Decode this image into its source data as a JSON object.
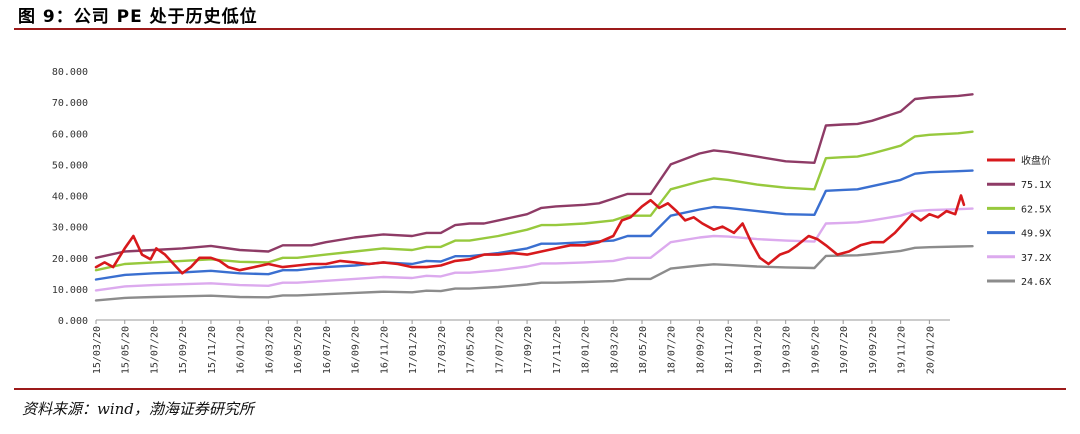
{
  "title": "图 9：公司 PE 处于历史低位",
  "source": "资料来源：wind，渤海证券研究所",
  "chart_data": {
    "type": "line",
    "ylim": [
      0,
      80
    ],
    "y_ticks": [
      "0.000",
      "10.000",
      "20.000",
      "30.000",
      "40.000",
      "50.000",
      "60.000",
      "70.000",
      "80.000"
    ],
    "x_ticks": [
      "15/03/20",
      "15/05/20",
      "15/07/20",
      "15/09/20",
      "15/11/20",
      "16/01/20",
      "16/03/20",
      "16/05/20",
      "16/07/20",
      "16/09/20",
      "16/11/20",
      "17/01/20",
      "17/03/20",
      "17/05/20",
      "17/07/20",
      "17/09/20",
      "17/11/20",
      "18/01/20",
      "18/03/20",
      "18/05/20",
      "18/07/20",
      "18/09/20",
      "18/11/20",
      "19/01/20",
      "19/03/20",
      "19/05/20",
      "19/07/20",
      "19/09/20",
      "19/11/20",
      "20/01/20"
    ],
    "grid": false,
    "legend_position": "right",
    "series": [
      {
        "name": "收盘价",
        "color": "#d7191c",
        "width": 2.6,
        "values": [
          [
            0,
            17
          ],
          [
            0.3,
            18.5
          ],
          [
            0.6,
            17
          ],
          [
            1.0,
            23
          ],
          [
            1.3,
            27
          ],
          [
            1.6,
            21
          ],
          [
            1.9,
            19.5
          ],
          [
            2.1,
            23
          ],
          [
            2.4,
            21
          ],
          [
            2.8,
            17
          ],
          [
            3.0,
            15
          ],
          [
            3.3,
            17
          ],
          [
            3.6,
            20
          ],
          [
            4.0,
            20
          ],
          [
            4.3,
            19
          ],
          [
            4.6,
            17
          ],
          [
            5.0,
            16
          ],
          [
            5.5,
            17
          ],
          [
            6.0,
            18
          ],
          [
            6.5,
            17
          ],
          [
            7.0,
            17.5
          ],
          [
            7.5,
            18
          ],
          [
            8.0,
            18
          ],
          [
            8.5,
            19
          ],
          [
            9.0,
            18.5
          ],
          [
            9.5,
            18
          ],
          [
            10.0,
            18.5
          ],
          [
            10.5,
            18
          ],
          [
            11.0,
            17
          ],
          [
            11.5,
            17
          ],
          [
            12.0,
            17.5
          ],
          [
            12.5,
            19
          ],
          [
            13.0,
            19.5
          ],
          [
            13.5,
            21
          ],
          [
            14.0,
            21
          ],
          [
            14.5,
            21.5
          ],
          [
            15.0,
            21
          ],
          [
            15.5,
            22
          ],
          [
            16.0,
            23
          ],
          [
            16.5,
            24
          ],
          [
            17.0,
            24
          ],
          [
            17.5,
            25
          ],
          [
            18.0,
            27
          ],
          [
            18.3,
            32
          ],
          [
            18.6,
            33
          ],
          [
            19.0,
            36.5
          ],
          [
            19.3,
            38.5
          ],
          [
            19.6,
            36
          ],
          [
            19.9,
            37.5
          ],
          [
            20.2,
            35
          ],
          [
            20.5,
            32
          ],
          [
            20.8,
            33
          ],
          [
            21.1,
            31
          ],
          [
            21.5,
            29
          ],
          [
            21.8,
            30
          ],
          [
            22.2,
            28
          ],
          [
            22.5,
            31
          ],
          [
            22.8,
            25
          ],
          [
            23.1,
            20
          ],
          [
            23.4,
            18
          ],
          [
            23.8,
            21
          ],
          [
            24.1,
            22
          ],
          [
            24.4,
            24
          ],
          [
            24.8,
            27
          ],
          [
            25.1,
            26
          ],
          [
            25.4,
            24
          ],
          [
            25.8,
            21
          ],
          [
            26.2,
            22
          ],
          [
            26.6,
            24
          ],
          [
            27.0,
            25
          ],
          [
            27.4,
            25
          ],
          [
            27.8,
            28
          ],
          [
            28.1,
            31
          ],
          [
            28.4,
            34
          ],
          [
            28.7,
            32
          ],
          [
            29.0,
            34
          ],
          [
            29.3,
            33
          ],
          [
            29.6,
            35
          ],
          [
            29.9,
            34
          ],
          [
            30.1,
            40
          ],
          [
            30.2,
            37
          ]
        ]
      },
      {
        "name": "75.1X",
        "color": "#8e3b66",
        "width": 2.4,
        "values": [
          [
            0,
            20
          ],
          [
            1,
            22
          ],
          [
            2,
            22.5
          ],
          [
            3,
            23
          ],
          [
            4,
            23.8
          ],
          [
            5,
            22.5
          ],
          [
            6,
            22
          ],
          [
            6.5,
            24
          ],
          [
            7,
            24
          ],
          [
            7.5,
            24
          ],
          [
            8,
            25
          ],
          [
            9,
            26.5
          ],
          [
            10,
            27.5
          ],
          [
            11,
            27
          ],
          [
            11.5,
            28
          ],
          [
            12,
            28
          ],
          [
            12.5,
            30.5
          ],
          [
            13,
            31
          ],
          [
            13.5,
            31
          ],
          [
            14,
            32
          ],
          [
            15,
            34
          ],
          [
            15.5,
            36
          ],
          [
            16,
            36.5
          ],
          [
            17,
            37
          ],
          [
            17.5,
            37.5
          ],
          [
            18,
            39
          ],
          [
            18.5,
            40.5
          ],
          [
            19.3,
            40.5
          ],
          [
            20,
            50
          ],
          [
            21,
            53.5
          ],
          [
            21.5,
            54.5
          ],
          [
            22,
            54
          ],
          [
            23,
            52.5
          ],
          [
            24,
            51
          ],
          [
            25,
            50.5
          ],
          [
            25.4,
            62.5
          ],
          [
            26,
            62.8
          ],
          [
            26.5,
            63
          ],
          [
            27,
            64
          ],
          [
            28,
            67
          ],
          [
            28.5,
            71
          ],
          [
            29,
            71.5
          ],
          [
            30,
            72
          ],
          [
            30.5,
            72.5
          ]
        ]
      },
      {
        "name": "62.5X",
        "color": "#97c93d",
        "width": 2.4,
        "values": [
          [
            0,
            16
          ],
          [
            1,
            18
          ],
          [
            2,
            18.5
          ],
          [
            3,
            19
          ],
          [
            4,
            19.5
          ],
          [
            5,
            18.7
          ],
          [
            6,
            18.5
          ],
          [
            6.5,
            20
          ],
          [
            7,
            20
          ],
          [
            8,
            21
          ],
          [
            9,
            22
          ],
          [
            10,
            23
          ],
          [
            11,
            22.5
          ],
          [
            11.5,
            23.5
          ],
          [
            12,
            23.5
          ],
          [
            12.5,
            25.5
          ],
          [
            13,
            25.5
          ],
          [
            14,
            27
          ],
          [
            15,
            29
          ],
          [
            15.5,
            30.5
          ],
          [
            16,
            30.5
          ],
          [
            17,
            31
          ],
          [
            18,
            32
          ],
          [
            18.5,
            33.5
          ],
          [
            19.3,
            33.5
          ],
          [
            20,
            42
          ],
          [
            21,
            44.5
          ],
          [
            21.5,
            45.5
          ],
          [
            22,
            45
          ],
          [
            23,
            43.5
          ],
          [
            24,
            42.5
          ],
          [
            25,
            42
          ],
          [
            25.4,
            52
          ],
          [
            26,
            52.3
          ],
          [
            26.5,
            52.5
          ],
          [
            27,
            53.5
          ],
          [
            28,
            56
          ],
          [
            28.5,
            59
          ],
          [
            29,
            59.5
          ],
          [
            30,
            60
          ],
          [
            30.5,
            60.5
          ]
        ]
      },
      {
        "name": "49.9X",
        "color": "#3a6fd0",
        "width": 2.4,
        "values": [
          [
            0,
            13
          ],
          [
            1,
            14.5
          ],
          [
            2,
            15
          ],
          [
            3,
            15.3
          ],
          [
            4,
            15.8
          ],
          [
            5,
            15
          ],
          [
            6,
            14.7
          ],
          [
            6.5,
            16
          ],
          [
            7,
            16
          ],
          [
            8,
            17
          ],
          [
            9,
            17.5
          ],
          [
            10,
            18.5
          ],
          [
            11,
            18
          ],
          [
            11.5,
            19
          ],
          [
            12,
            18.8
          ],
          [
            12.5,
            20.5
          ],
          [
            13,
            20.5
          ],
          [
            14,
            21.5
          ],
          [
            15,
            23
          ],
          [
            15.5,
            24.5
          ],
          [
            16,
            24.5
          ],
          [
            17,
            25
          ],
          [
            18,
            25.5
          ],
          [
            18.5,
            27
          ],
          [
            19.3,
            27
          ],
          [
            20,
            33.5
          ],
          [
            21,
            35.5
          ],
          [
            21.5,
            36.3
          ],
          [
            22,
            36
          ],
          [
            23,
            35
          ],
          [
            24,
            34
          ],
          [
            25,
            33.8
          ],
          [
            25.4,
            41.5
          ],
          [
            26,
            41.8
          ],
          [
            26.5,
            42
          ],
          [
            27,
            43
          ],
          [
            28,
            45
          ],
          [
            28.5,
            47
          ],
          [
            29,
            47.5
          ],
          [
            30,
            47.8
          ],
          [
            30.5,
            48
          ]
        ]
      },
      {
        "name": "37.2X",
        "color": "#dcaaee",
        "width": 2.4,
        "values": [
          [
            0,
            9.5
          ],
          [
            1,
            10.8
          ],
          [
            2,
            11.2
          ],
          [
            3,
            11.5
          ],
          [
            4,
            11.8
          ],
          [
            5,
            11.2
          ],
          [
            6,
            11
          ],
          [
            6.5,
            12
          ],
          [
            7,
            12
          ],
          [
            8,
            12.6
          ],
          [
            9,
            13.2
          ],
          [
            10,
            13.8
          ],
          [
            11,
            13.5
          ],
          [
            11.5,
            14.2
          ],
          [
            12,
            14
          ],
          [
            12.5,
            15.2
          ],
          [
            13,
            15.2
          ],
          [
            14,
            16
          ],
          [
            15,
            17.2
          ],
          [
            15.5,
            18.2
          ],
          [
            16,
            18.2
          ],
          [
            17,
            18.5
          ],
          [
            18,
            19
          ],
          [
            18.5,
            20
          ],
          [
            19.3,
            20
          ],
          [
            20,
            25
          ],
          [
            21,
            26.5
          ],
          [
            21.5,
            27
          ],
          [
            22,
            26.8
          ],
          [
            23,
            26
          ],
          [
            24,
            25.5
          ],
          [
            25,
            25.2
          ],
          [
            25.4,
            31
          ],
          [
            26,
            31.2
          ],
          [
            26.5,
            31.4
          ],
          [
            27,
            32
          ],
          [
            28,
            33.5
          ],
          [
            28.5,
            35
          ],
          [
            29,
            35.3
          ],
          [
            30,
            35.6
          ],
          [
            30.5,
            35.8
          ]
        ]
      },
      {
        "name": "24.6X",
        "color": "#8c8c8c",
        "width": 2.4,
        "values": [
          [
            0,
            6.3
          ],
          [
            1,
            7.1
          ],
          [
            2,
            7.4
          ],
          [
            3,
            7.6
          ],
          [
            4,
            7.8
          ],
          [
            5,
            7.4
          ],
          [
            6,
            7.3
          ],
          [
            6.5,
            7.9
          ],
          [
            7,
            7.9
          ],
          [
            8,
            8.3
          ],
          [
            9,
            8.7
          ],
          [
            10,
            9.1
          ],
          [
            11,
            8.9
          ],
          [
            11.5,
            9.4
          ],
          [
            12,
            9.3
          ],
          [
            12.5,
            10.1
          ],
          [
            13,
            10.1
          ],
          [
            14,
            10.6
          ],
          [
            15,
            11.4
          ],
          [
            15.5,
            12
          ],
          [
            16,
            12
          ],
          [
            17,
            12.2
          ],
          [
            18,
            12.5
          ],
          [
            18.5,
            13.2
          ],
          [
            19.3,
            13.2
          ],
          [
            20,
            16.5
          ],
          [
            21,
            17.5
          ],
          [
            21.5,
            17.9
          ],
          [
            22,
            17.7
          ],
          [
            23,
            17.2
          ],
          [
            24,
            16.9
          ],
          [
            25,
            16.7
          ],
          [
            25.4,
            20.6
          ],
          [
            26,
            20.7
          ],
          [
            26.5,
            20.8
          ],
          [
            27,
            21.2
          ],
          [
            28,
            22.2
          ],
          [
            28.5,
            23.2
          ],
          [
            29,
            23.4
          ],
          [
            30,
            23.6
          ],
          [
            30.5,
            23.7
          ]
        ]
      }
    ]
  }
}
